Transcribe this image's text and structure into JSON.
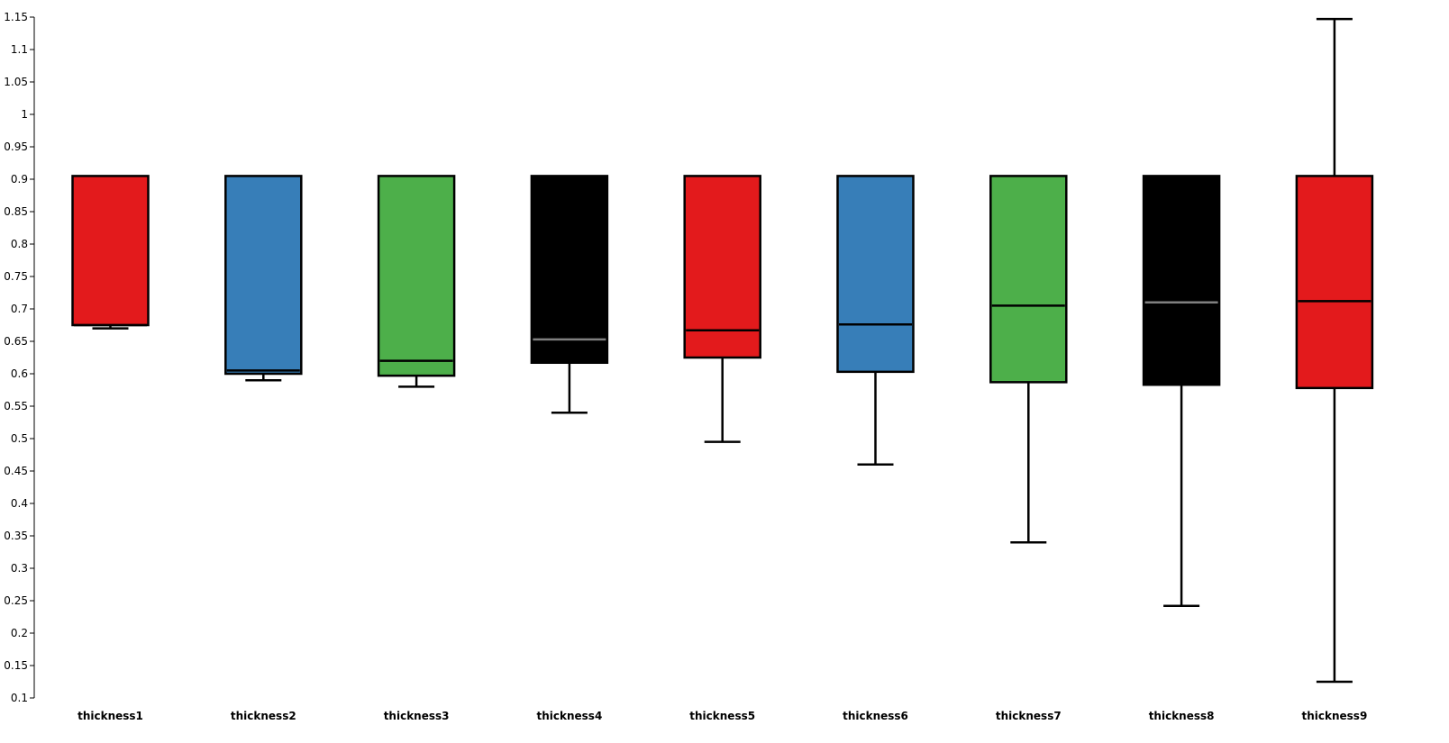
{
  "chart_data": {
    "type": "box",
    "title": "",
    "xlabel": "",
    "ylabel": "",
    "ylim": [
      0.1,
      1.15
    ],
    "yticks": [
      "0.1",
      "0.15",
      "0.2",
      "0.25",
      "0.3",
      "0.35",
      "0.4",
      "0.45",
      "0.5",
      "0.55",
      "0.6",
      "0.65",
      "0.7",
      "0.75",
      "0.8",
      "0.85",
      "0.9",
      "0.95",
      "1",
      "1.05",
      "1.1",
      "1.15"
    ],
    "grid": false,
    "legend": "none",
    "categories": [
      "thickness1",
      "thickness2",
      "thickness3",
      "thickness4",
      "thickness5",
      "thickness6",
      "thickness7",
      "thickness8",
      "thickness9"
    ],
    "boxes": [
      {
        "min": 0.67,
        "q1": 0.675,
        "median": 0.675,
        "q3": 0.905,
        "max": 0.905,
        "color": "#e31a1c",
        "median_color": "#000000"
      },
      {
        "min": 0.59,
        "q1": 0.6,
        "median": 0.605,
        "q3": 0.905,
        "max": 0.905,
        "color": "#377eb8",
        "median_color": "#000000"
      },
      {
        "min": 0.58,
        "q1": 0.597,
        "median": 0.62,
        "q3": 0.905,
        "max": 0.905,
        "color": "#4daf4a",
        "median_color": "#000000"
      },
      {
        "min": 0.54,
        "q1": 0.617,
        "median": 0.653,
        "q3": 0.905,
        "max": 0.905,
        "color": "#000000",
        "median_color": "#808080"
      },
      {
        "min": 0.495,
        "q1": 0.625,
        "median": 0.667,
        "q3": 0.905,
        "max": 0.905,
        "color": "#e31a1c",
        "median_color": "#000000"
      },
      {
        "min": 0.46,
        "q1": 0.603,
        "median": 0.676,
        "q3": 0.905,
        "max": 0.905,
        "color": "#377eb8",
        "median_color": "#000000"
      },
      {
        "min": 0.34,
        "q1": 0.587,
        "median": 0.705,
        "q3": 0.905,
        "max": 0.905,
        "color": "#4daf4a",
        "median_color": "#000000"
      },
      {
        "min": 0.242,
        "q1": 0.583,
        "median": 0.71,
        "q3": 0.905,
        "max": 0.905,
        "color": "#000000",
        "median_color": "#808080"
      },
      {
        "min": 0.125,
        "q1": 0.578,
        "median": 0.712,
        "q3": 0.905,
        "max": 1.147,
        "color": "#e31a1c",
        "median_color": "#000000"
      }
    ]
  }
}
